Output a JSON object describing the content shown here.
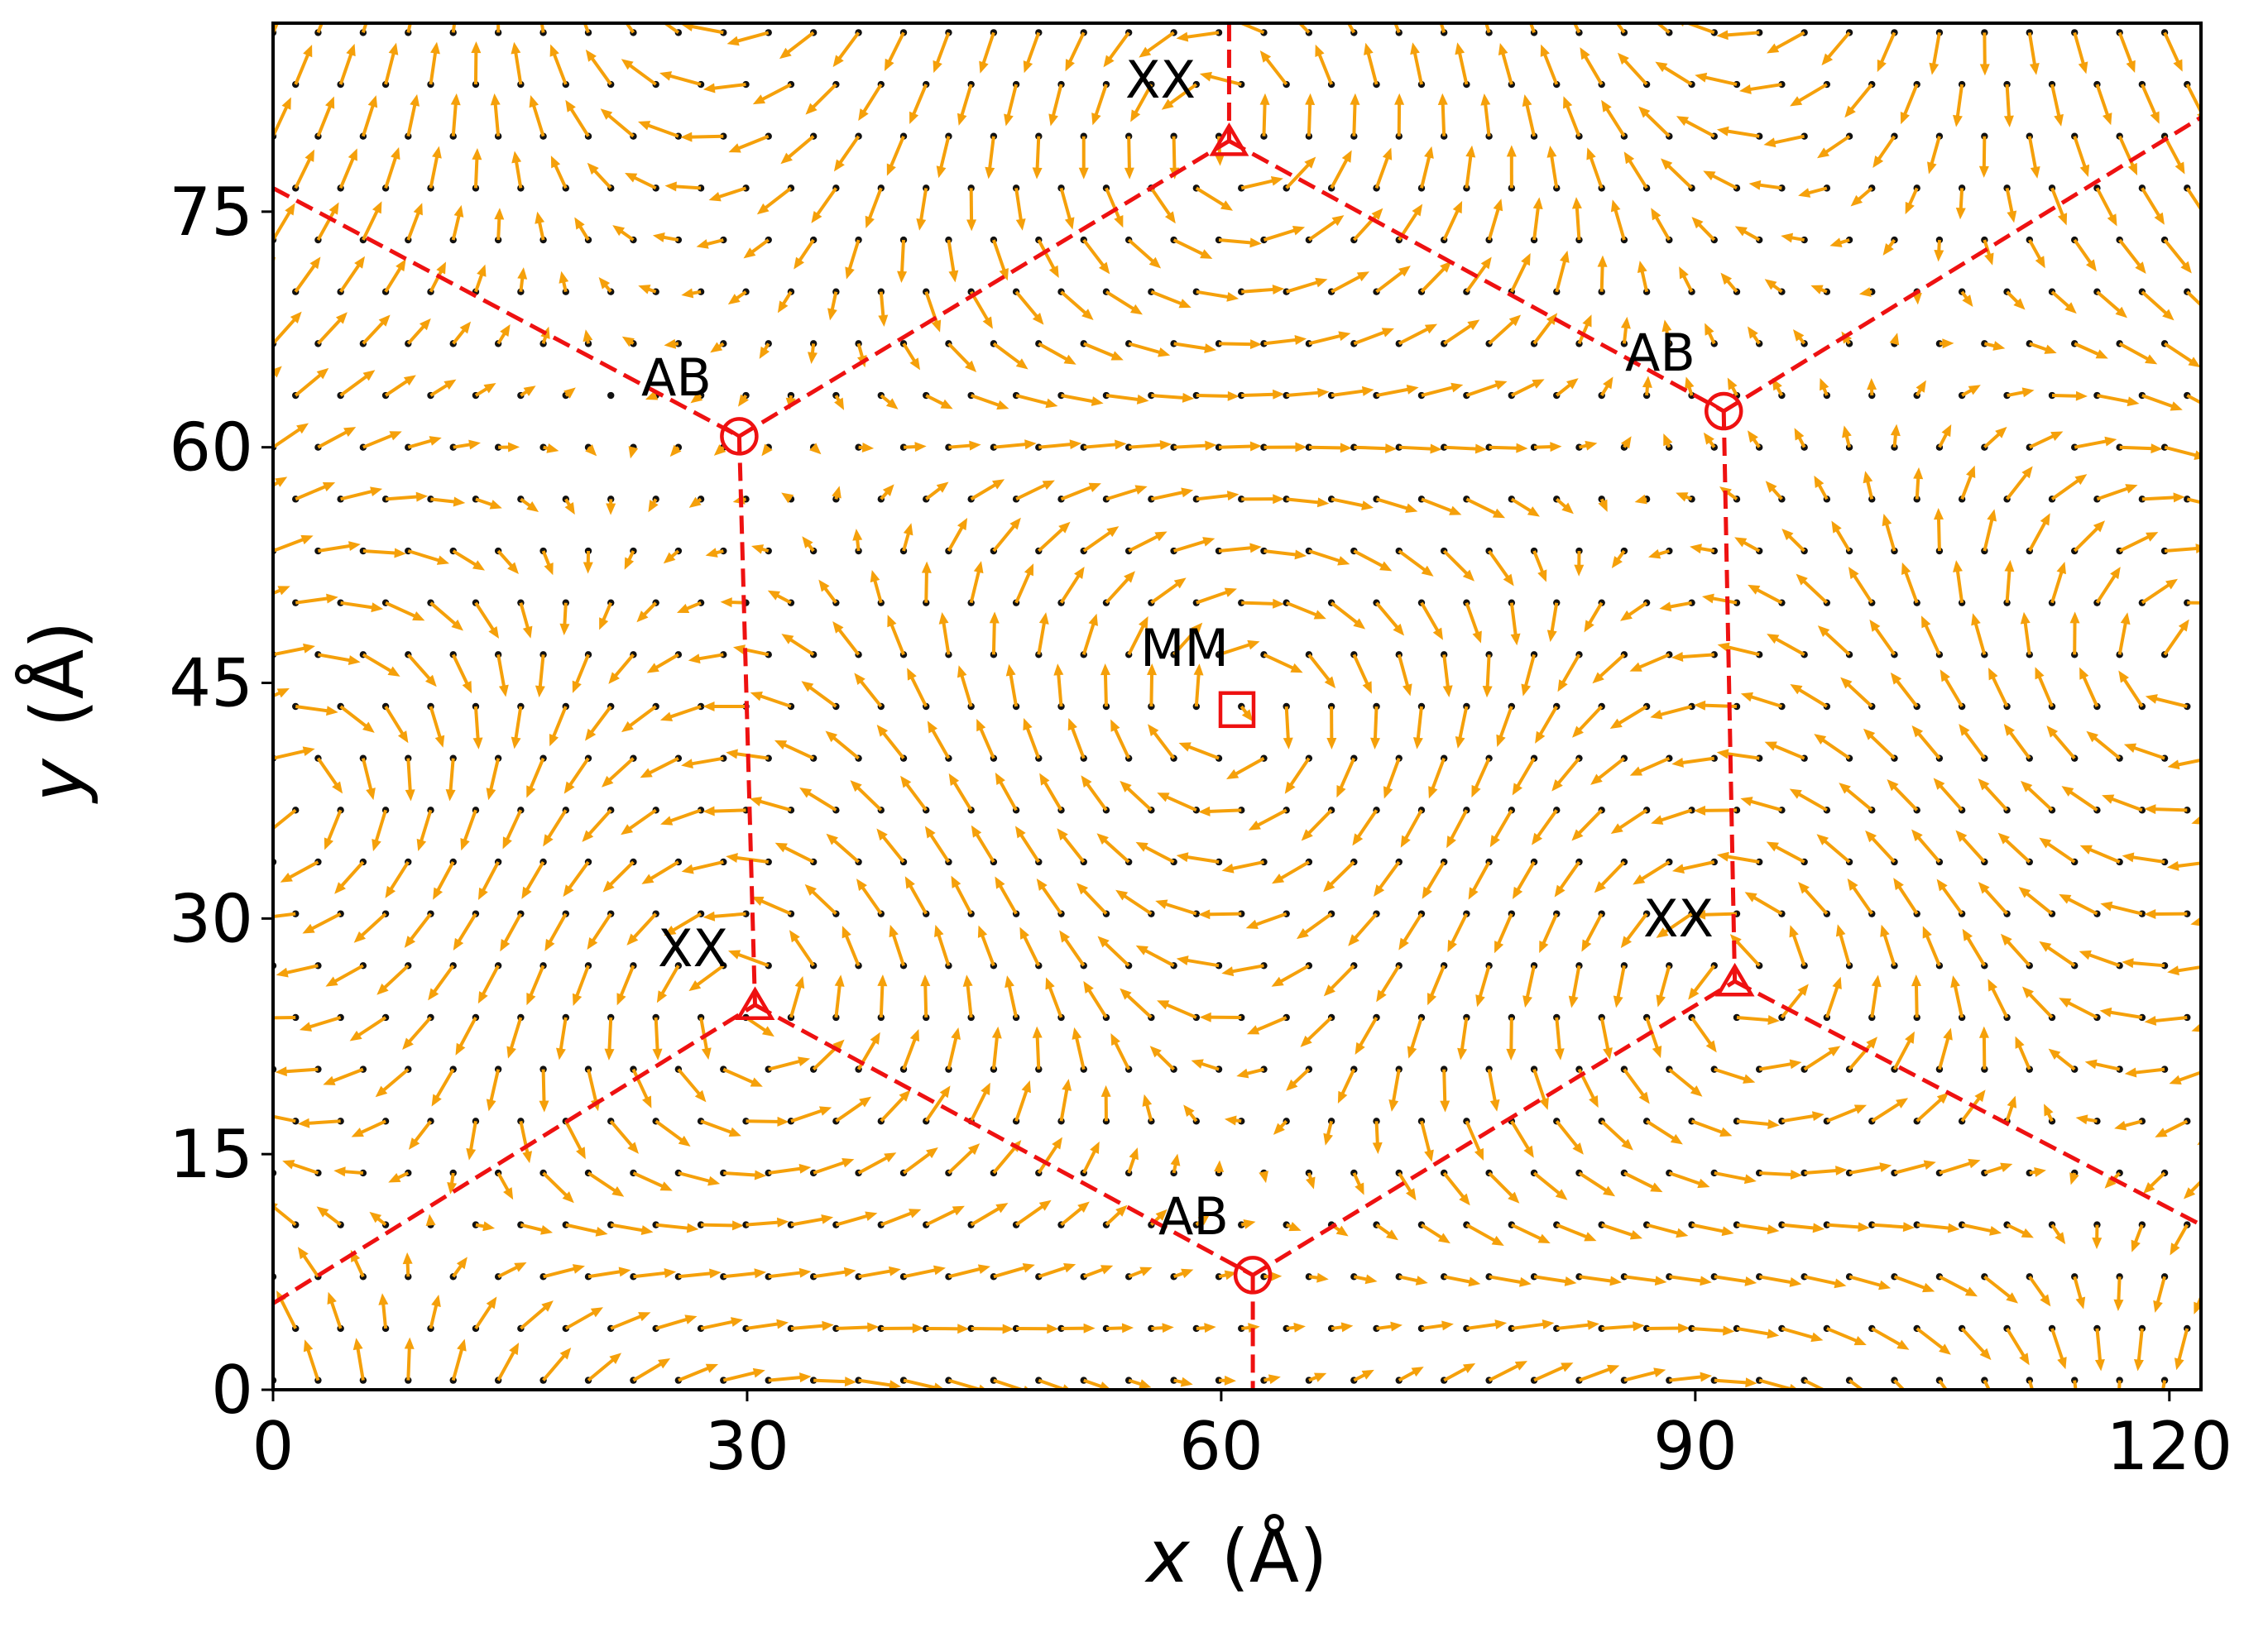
{
  "chart_data": {
    "type": "vector-field",
    "xlabel": "x (Å)",
    "ylabel": "y (Å)",
    "xlim": [
      0,
      122
    ],
    "ylim": [
      0,
      87
    ],
    "xticks": [
      "0",
      "30",
      "60",
      "90",
      "120"
    ],
    "yticks": [
      "0",
      "15",
      "30",
      "45",
      "60",
      "75"
    ],
    "grid": false,
    "colors": {
      "arrows": "#f5a00a",
      "atoms": "#111111",
      "boundary": "#ee1111"
    },
    "stacking_sites": [
      {
        "label": "XX",
        "marker": "triangle",
        "x": 60.5,
        "y": 79.5
      },
      {
        "label": "AB",
        "marker": "circle-y",
        "x": 29.5,
        "y": 60.7
      },
      {
        "label": "AB",
        "marker": "circle-y",
        "x": 91.8,
        "y": 62.3
      },
      {
        "label": "MM",
        "marker": "square",
        "x": 61.0,
        "y": 43.3
      },
      {
        "label": "XX",
        "marker": "triangle",
        "x": 30.5,
        "y": 24.5
      },
      {
        "label": "XX",
        "marker": "triangle",
        "x": 92.5,
        "y": 26.0
      },
      {
        "label": "AB",
        "marker": "circle-y",
        "x": 62.0,
        "y": 7.3
      }
    ],
    "boundary_segments": [
      [
        [
          60.5,
          87
        ],
        [
          60.5,
          79.5
        ]
      ],
      [
        [
          0,
          76.5
        ],
        [
          29.5,
          60.7
        ]
      ],
      [
        [
          29.5,
          60.7
        ],
        [
          60.5,
          79.5
        ]
      ],
      [
        [
          60.5,
          79.5
        ],
        [
          91.8,
          62.3
        ]
      ],
      [
        [
          91.8,
          62.3
        ],
        [
          122,
          81.0
        ]
      ],
      [
        [
          29.5,
          60.7
        ],
        [
          30.5,
          24.5
        ]
      ],
      [
        [
          91.8,
          62.3
        ],
        [
          92.5,
          26.0
        ]
      ],
      [
        [
          0,
          5.5
        ],
        [
          30.5,
          24.5
        ]
      ],
      [
        [
          30.5,
          24.5
        ],
        [
          62.0,
          7.3
        ]
      ],
      [
        [
          62.0,
          7.3
        ],
        [
          92.5,
          26.0
        ]
      ],
      [
        [
          92.5,
          26.0
        ],
        [
          122,
          10.5
        ]
      ],
      [
        [
          62.0,
          7.3
        ],
        [
          62.0,
          0
        ]
      ]
    ],
    "vector_field": {
      "description": "in-plane displacement arrows on atomic lattice",
      "vortex_centers": [
        {
          "x": 61.0,
          "y": 43.3,
          "circulation": -1
        },
        {
          "x": 60.5,
          "y": 79.5,
          "circulation": 1
        },
        {
          "x": 30.5,
          "y": 24.5,
          "circulation": 1
        },
        {
          "x": 92.5,
          "y": 26.0,
          "circulation": 1
        },
        {
          "x": 0.0,
          "y": 38.0,
          "circulation": -1
        },
        {
          "x": 122.0,
          "y": 45.0,
          "circulation": -1
        },
        {
          "x": 30.5,
          "y": 95.0,
          "circulation": -1
        },
        {
          "x": 92.5,
          "y": 96.0,
          "circulation": -1
        },
        {
          "x": 30.5,
          "y": -12.0,
          "circulation": -1
        },
        {
          "x": 92.5,
          "y": -10.0,
          "circulation": -1
        }
      ]
    }
  },
  "site_labels": {
    "xx_top": "XX",
    "ab_left": "AB",
    "ab_right": "AB",
    "mm_center": "MM",
    "xx_left": "XX",
    "xx_right": "XX",
    "ab_bottom": "AB"
  },
  "axes": {
    "xlabel_var": "x",
    "xlabel_unit": "(Å)",
    "ylabel_var": "y",
    "ylabel_unit": "(Å)"
  }
}
